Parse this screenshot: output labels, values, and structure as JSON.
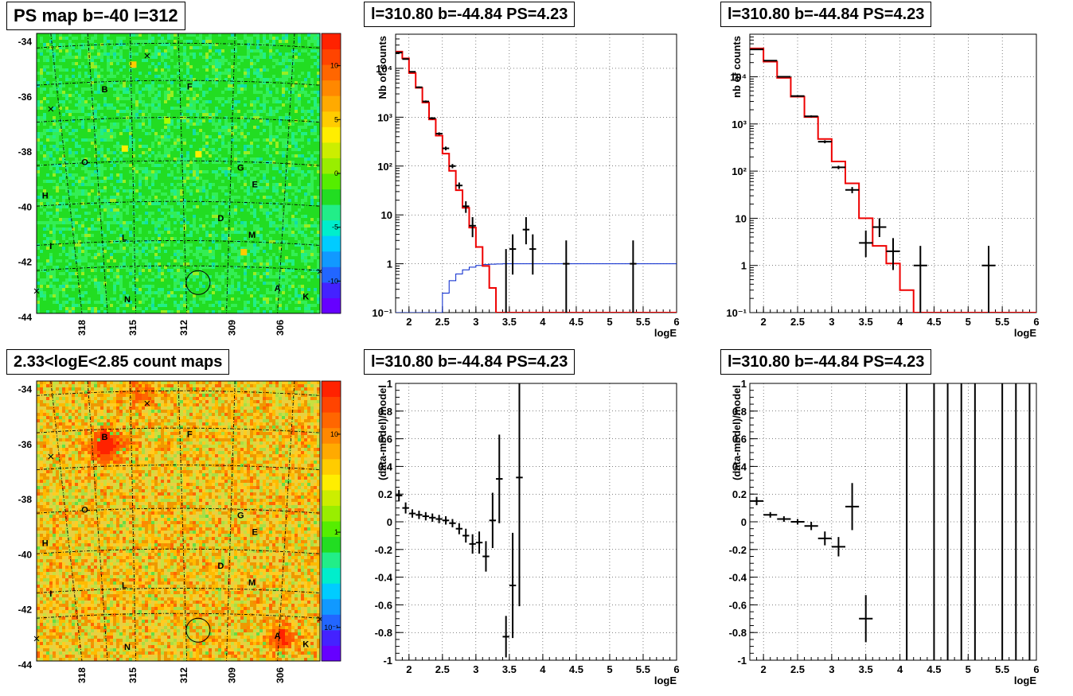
{
  "panels": {
    "ps_map": {
      "title": "PS map b=-40 l=312",
      "y_ticks": [
        "-34",
        "-36",
        "-38",
        "-40",
        "-42",
        "-44"
      ],
      "x_ticks": [
        "318",
        "315",
        "312",
        "309",
        "306"
      ],
      "colorbar_ticks": [
        "10",
        "5",
        "0",
        "-5",
        "-10"
      ],
      "source_labels": [
        "B",
        "F",
        "O",
        "G",
        "E",
        "H",
        "D",
        "M",
        "I",
        "L",
        "A",
        "N",
        "K"
      ],
      "colors": {
        "background": "#22dd22",
        "hot": "#ff2200",
        "cold": "#6600ff"
      }
    },
    "count_map": {
      "title": "2.33<logE<2.85 count maps",
      "y_ticks": [
        "-34",
        "-36",
        "-38",
        "-40",
        "-42",
        "-44"
      ],
      "x_ticks": [
        "318",
        "315",
        "312",
        "309",
        "306"
      ],
      "colorbar_ticks": [
        "10",
        "1",
        "10⁻¹"
      ],
      "source_labels": [
        "B",
        "F",
        "O",
        "G",
        "E",
        "H",
        "D",
        "M",
        "I",
        "L",
        "A",
        "N",
        "K"
      ],
      "colors": {
        "background": "#e8d040",
        "hot": "#ff2200"
      }
    },
    "spectrum_left": {
      "title": "l=310.80 b=-44.84 PS=4.23"
    },
    "spectrum_right": {
      "title": "l=310.80 b=-44.84 PS=4.23"
    },
    "residual_left": {
      "title": "l=310.80 b=-44.84 PS=4.23"
    },
    "residual_right": {
      "title": "l=310.80 b=-44.84 PS=4.23"
    }
  },
  "chart_data": [
    {
      "id": "spectrum_left",
      "type": "line",
      "xlabel": "logE",
      "ylabel": "Nb of counts",
      "xlim": [
        1.8,
        6
      ],
      "ylim": [
        0.1,
        50000
      ],
      "log_y": true,
      "grid": true,
      "x_ticks": [
        "2",
        "2.5",
        "3",
        "3.5",
        "4",
        "4.5",
        "5",
        "5.5",
        "6"
      ],
      "y_ticks": [
        {
          "v": 0.1,
          "label": "10⁻¹"
        },
        {
          "v": 1,
          "label": "1"
        },
        {
          "v": 10,
          "label": "10"
        },
        {
          "v": 100,
          "label": "10²"
        },
        {
          "v": 1000,
          "label": "10³"
        },
        {
          "v": 10000,
          "label": "10⁴"
        }
      ],
      "model_steps": {
        "bin_width": 0.1,
        "x0": 1.8,
        "values": [
          22000,
          16000,
          8000,
          4000,
          2000,
          900,
          420,
          180,
          80,
          32,
          14,
          5.5,
          2.2,
          0.9,
          0.32,
          0.1,
          0.04
        ]
      },
      "efficiency": {
        "bin_width": 0.1,
        "x0": 1.8,
        "values": [
          0,
          0,
          0,
          0,
          0,
          0.02,
          0.1,
          0.25,
          0.45,
          0.62,
          0.75,
          0.85,
          0.92,
          0.96,
          0.98,
          0.99,
          1,
          1,
          1,
          1,
          1,
          1,
          1,
          1,
          1,
          1,
          1,
          1,
          1,
          1,
          1,
          1,
          1,
          1,
          1,
          1,
          1,
          1,
          1,
          1,
          1,
          1
        ]
      },
      "data_points": [
        {
          "x": 1.85,
          "y": 21000,
          "xerr": 0.05,
          "ylo": 20500,
          "yhi": 21500
        },
        {
          "x": 1.95,
          "y": 15500,
          "xerr": 0.05,
          "ylo": 15100,
          "yhi": 15900
        },
        {
          "x": 2.05,
          "y": 8500,
          "xerr": 0.05,
          "ylo": 8300,
          "yhi": 8700
        },
        {
          "x": 2.15,
          "y": 4100,
          "xerr": 0.05,
          "ylo": 3950,
          "yhi": 4250
        },
        {
          "x": 2.25,
          "y": 2100,
          "xerr": 0.05,
          "ylo": 2000,
          "yhi": 2200
        },
        {
          "x": 2.35,
          "y": 950,
          "xerr": 0.05,
          "ylo": 900,
          "yhi": 1000
        },
        {
          "x": 2.45,
          "y": 460,
          "xerr": 0.05,
          "ylo": 430,
          "yhi": 490
        },
        {
          "x": 2.55,
          "y": 230,
          "xerr": 0.05,
          "ylo": 210,
          "yhi": 250
        },
        {
          "x": 2.65,
          "y": 100,
          "xerr": 0.05,
          "ylo": 90,
          "yhi": 110
        },
        {
          "x": 2.75,
          "y": 40,
          "xerr": 0.05,
          "ylo": 34,
          "yhi": 46
        },
        {
          "x": 2.85,
          "y": 15,
          "xerr": 0.05,
          "ylo": 11,
          "yhi": 19
        },
        {
          "x": 2.95,
          "y": 6,
          "xerr": 0.05,
          "ylo": 3.5,
          "yhi": 9
        },
        {
          "x": 3.45,
          "y": 0.1,
          "xerr": 0,
          "ylo": 0.1,
          "yhi": 2
        },
        {
          "x": 3.55,
          "y": 2,
          "xerr": 0.05,
          "ylo": 0.6,
          "yhi": 4
        },
        {
          "x": 3.75,
          "y": 5,
          "xerr": 0.05,
          "ylo": 2.5,
          "yhi": 9
        },
        {
          "x": 3.85,
          "y": 2,
          "xerr": 0.05,
          "ylo": 0.6,
          "yhi": 4
        },
        {
          "x": 4.35,
          "y": 1,
          "xerr": 0.05,
          "ylo": 0.1,
          "yhi": 3
        },
        {
          "x": 5.35,
          "y": 1,
          "xerr": 0.05,
          "ylo": 0.1,
          "yhi": 3
        }
      ]
    },
    {
      "id": "spectrum_right",
      "type": "line",
      "xlabel": "logE",
      "ylabel": "nb of counts",
      "xlim": [
        1.8,
        6
      ],
      "ylim": [
        0.1,
        80000
      ],
      "log_y": true,
      "grid": true,
      "x_ticks": [
        "2",
        "2.5",
        "3",
        "3.5",
        "4",
        "4.5",
        "5",
        "5.5",
        "6"
      ],
      "y_ticks": [
        {
          "v": 0.1,
          "label": "10⁻¹"
        },
        {
          "v": 1,
          "label": "1"
        },
        {
          "v": 10,
          "label": "10"
        },
        {
          "v": 100,
          "label": "10²"
        },
        {
          "v": 1000,
          "label": "10³"
        },
        {
          "v": 10000,
          "label": "10⁴"
        }
      ],
      "model_steps": {
        "bin_width": 0.2,
        "x0": 1.8,
        "values": [
          40000,
          21000,
          9500,
          3800,
          1400,
          480,
          160,
          55,
          10,
          2.6,
          1.1,
          0.3,
          0.08
        ]
      },
      "data_points": [
        {
          "x": 1.9,
          "y": 38000,
          "xerr": 0.1,
          "ylo": 37000,
          "yhi": 39000
        },
        {
          "x": 2.1,
          "y": 22000,
          "xerr": 0.1,
          "ylo": 21500,
          "yhi": 22500
        },
        {
          "x": 2.3,
          "y": 10000,
          "xerr": 0.1,
          "ylo": 9700,
          "yhi": 10300
        },
        {
          "x": 2.5,
          "y": 3900,
          "xerr": 0.1,
          "ylo": 3750,
          "yhi": 4050
        },
        {
          "x": 2.7,
          "y": 1450,
          "xerr": 0.1,
          "ylo": 1380,
          "yhi": 1520
        },
        {
          "x": 2.9,
          "y": 420,
          "xerr": 0.1,
          "ylo": 390,
          "yhi": 450
        },
        {
          "x": 3.1,
          "y": 120,
          "xerr": 0.1,
          "ylo": 110,
          "yhi": 130
        },
        {
          "x": 3.3,
          "y": 40,
          "xerr": 0.1,
          "ylo": 34,
          "yhi": 46
        },
        {
          "x": 3.5,
          "y": 3,
          "xerr": 0.1,
          "ylo": 1.5,
          "yhi": 5.5
        },
        {
          "x": 3.7,
          "y": 6.5,
          "xerr": 0.1,
          "ylo": 4,
          "yhi": 10
        },
        {
          "x": 3.9,
          "y": 2,
          "xerr": 0.1,
          "ylo": 0.8,
          "yhi": 3.8
        },
        {
          "x": 4.3,
          "y": 1,
          "xerr": 0.1,
          "ylo": 0.1,
          "yhi": 2.6
        },
        {
          "x": 5.3,
          "y": 1,
          "xerr": 0.1,
          "ylo": 0.1,
          "yhi": 2.6
        }
      ]
    },
    {
      "id": "residual_left",
      "type": "scatter",
      "xlabel": "logE",
      "ylabel": "(data-model)/model",
      "xlim": [
        1.8,
        6
      ],
      "ylim": [
        -1,
        1
      ],
      "grid": true,
      "x_ticks": [
        "2",
        "2.5",
        "3",
        "3.5",
        "4",
        "4.5",
        "5",
        "5.5",
        "6"
      ],
      "y_ticks": [
        "-1",
        "-0.8",
        "-0.6",
        "-0.4",
        "-0.2",
        "0",
        "0.2",
        "0.4",
        "0.6",
        "0.8",
        "1"
      ],
      "data_points": [
        {
          "x": 1.85,
          "y": 0.19,
          "xerr": 0.05,
          "yerr": 0.04
        },
        {
          "x": 1.95,
          "y": 0.1,
          "xerr": 0.05,
          "yerr": 0.04
        },
        {
          "x": 2.05,
          "y": 0.06,
          "xerr": 0.05,
          "yerr": 0.03
        },
        {
          "x": 2.15,
          "y": 0.05,
          "xerr": 0.05,
          "yerr": 0.03
        },
        {
          "x": 2.25,
          "y": 0.04,
          "xerr": 0.05,
          "yerr": 0.03
        },
        {
          "x": 2.35,
          "y": 0.03,
          "xerr": 0.05,
          "yerr": 0.03
        },
        {
          "x": 2.45,
          "y": 0.02,
          "xerr": 0.05,
          "yerr": 0.03
        },
        {
          "x": 2.55,
          "y": 0.01,
          "xerr": 0.05,
          "yerr": 0.03
        },
        {
          "x": 2.65,
          "y": -0.01,
          "xerr": 0.05,
          "yerr": 0.03
        },
        {
          "x": 2.75,
          "y": -0.05,
          "xerr": 0.05,
          "yerr": 0.04
        },
        {
          "x": 2.85,
          "y": -0.1,
          "xerr": 0.05,
          "yerr": 0.05
        },
        {
          "x": 2.95,
          "y": -0.16,
          "xerr": 0.05,
          "yerr": 0.07
        },
        {
          "x": 3.05,
          "y": -0.15,
          "xerr": 0.05,
          "yerr": 0.08
        },
        {
          "x": 3.15,
          "y": -0.25,
          "xerr": 0.05,
          "yerr": 0.11
        },
        {
          "x": 3.25,
          "y": 0.01,
          "xerr": 0.05,
          "yerr": 0.2
        },
        {
          "x": 3.35,
          "y": 0.31,
          "xerr": 0.05,
          "yerr": 0.32
        },
        {
          "x": 3.45,
          "y": -0.83,
          "xerr": 0.05,
          "yerr": 0.15
        },
        {
          "x": 3.55,
          "y": -0.46,
          "xerr": 0.05,
          "yerr": 0.38
        },
        {
          "x": 3.65,
          "y": 0.32,
          "xerr": 0.05,
          "yerr": 0.93
        }
      ]
    },
    {
      "id": "residual_right",
      "type": "scatter",
      "xlabel": "logE",
      "ylabel": "(data-model)/model",
      "xlim": [
        1.8,
        6
      ],
      "ylim": [
        -1,
        1
      ],
      "grid": true,
      "x_ticks": [
        "2",
        "2.5",
        "3",
        "3.5",
        "4",
        "4.5",
        "5",
        "5.5",
        "6"
      ],
      "y_ticks": [
        "-1",
        "-0.8",
        "-0.6",
        "-0.4",
        "-0.2",
        "0",
        "0.2",
        "0.4",
        "0.6",
        "0.8",
        "1"
      ],
      "data_points": [
        {
          "x": 1.9,
          "y": 0.15,
          "xerr": 0.1,
          "yerr": 0.03
        },
        {
          "x": 2.1,
          "y": 0.05,
          "xerr": 0.1,
          "yerr": 0.02
        },
        {
          "x": 2.3,
          "y": 0.02,
          "xerr": 0.1,
          "yerr": 0.02
        },
        {
          "x": 2.5,
          "y": 0.0,
          "xerr": 0.1,
          "yerr": 0.02
        },
        {
          "x": 2.7,
          "y": -0.03,
          "xerr": 0.1,
          "yerr": 0.03
        },
        {
          "x": 2.9,
          "y": -0.12,
          "xerr": 0.1,
          "yerr": 0.05
        },
        {
          "x": 3.1,
          "y": -0.18,
          "xerr": 0.1,
          "yerr": 0.07
        },
        {
          "x": 3.3,
          "y": 0.11,
          "xerr": 0.1,
          "yerr": 0.17
        },
        {
          "x": 3.5,
          "y": -0.7,
          "xerr": 0.1,
          "yerr": 0.17
        }
      ],
      "full_range_bars_x": [
        4.1,
        4.5,
        4.7,
        4.9,
        5.1,
        5.5,
        5.7,
        5.9
      ]
    }
  ]
}
